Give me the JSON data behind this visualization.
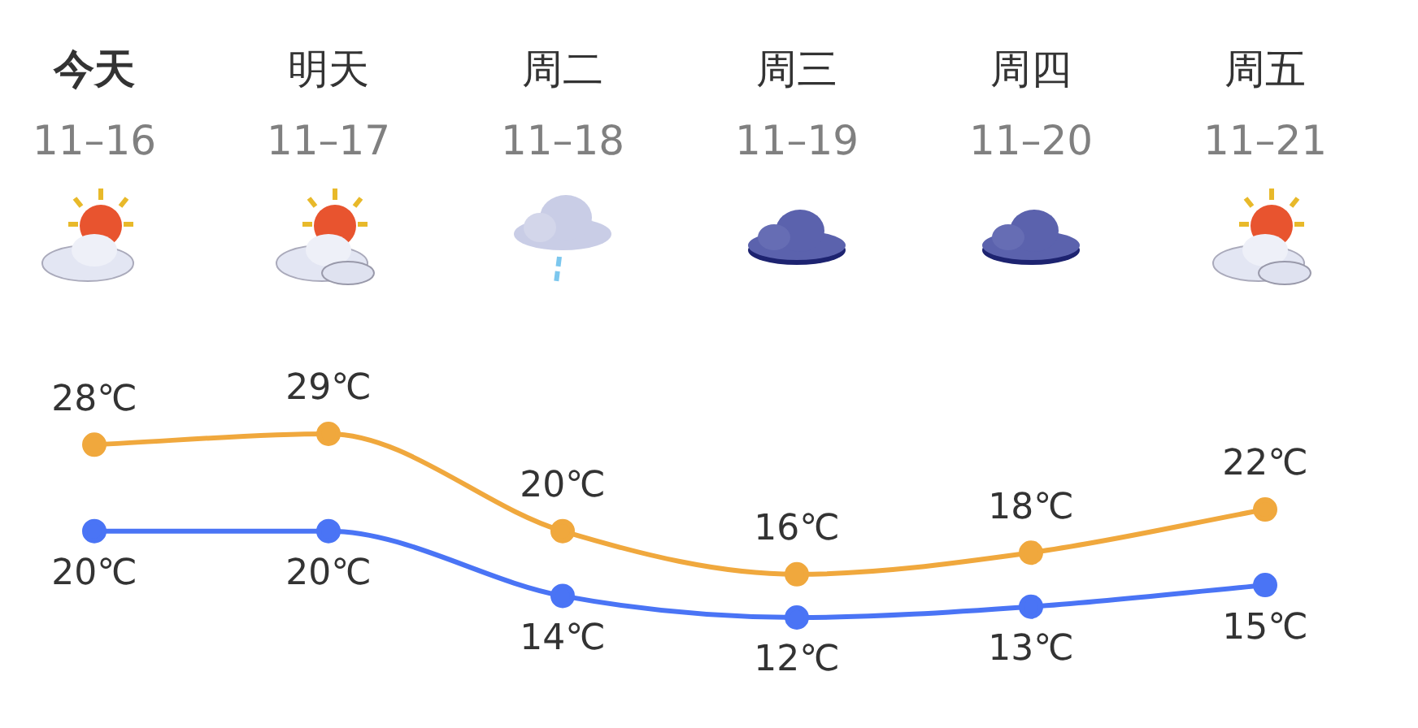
{
  "chart_data": {
    "type": "line",
    "categories": [
      "今天\n11–16",
      "明天\n11–17",
      "周二\n11–18",
      "周三\n11–19",
      "周四\n11–20",
      "周五\n11–21"
    ],
    "series": [
      {
        "color": "#f0a83d",
        "values": [
          28,
          29,
          20,
          16,
          18,
          22
        ],
        "value_labels": [
          "28℃",
          "29℃",
          "20℃",
          "16℃",
          "18℃",
          "22℃"
        ]
      },
      {
        "color": "#4a74f5",
        "values": [
          20,
          20,
          14,
          12,
          13,
          15
        ],
        "value_labels": [
          "20℃",
          "20℃",
          "14℃",
          "12℃",
          "13℃",
          "15℃"
        ]
      }
    ],
    "marker": "circle",
    "line_style": "solid",
    "legend": false
  }
}
